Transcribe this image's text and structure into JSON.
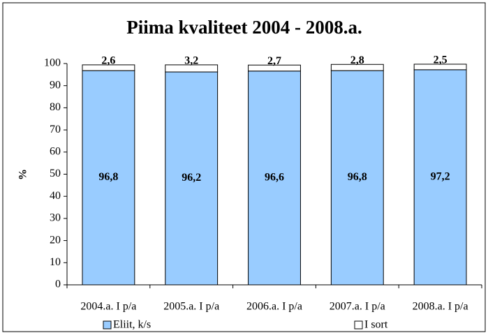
{
  "chart_data": {
    "type": "stacked_bar",
    "title": "Piima kvaliteet 2004 - 2008.a.",
    "y_label": "%",
    "categories": [
      "2004.a. I p/a",
      "2005.a. I p/a",
      "2006.a. I p/a",
      "2007.a. I p/a",
      "2008.a. I p/a"
    ],
    "series": [
      {
        "name": "Eliit, k/s",
        "color": "#99ccff",
        "values": [
          96.8,
          96.2,
          96.6,
          96.8,
          97.2
        ],
        "value_labels": [
          "96,8",
          "96,2",
          "96,6",
          "96,8",
          "97,2"
        ]
      },
      {
        "name": "I sort",
        "color": "#ffffff",
        "values": [
          2.6,
          3.2,
          2.7,
          2.8,
          2.5
        ],
        "value_labels": [
          "2,6",
          "3,2",
          "2,7",
          "2,8",
          "2,5"
        ]
      }
    ],
    "ylim": [
      0,
      100
    ],
    "yticks": [
      0,
      10,
      20,
      30,
      40,
      50,
      60,
      70,
      80,
      90,
      100
    ],
    "legend": "bottom"
  }
}
